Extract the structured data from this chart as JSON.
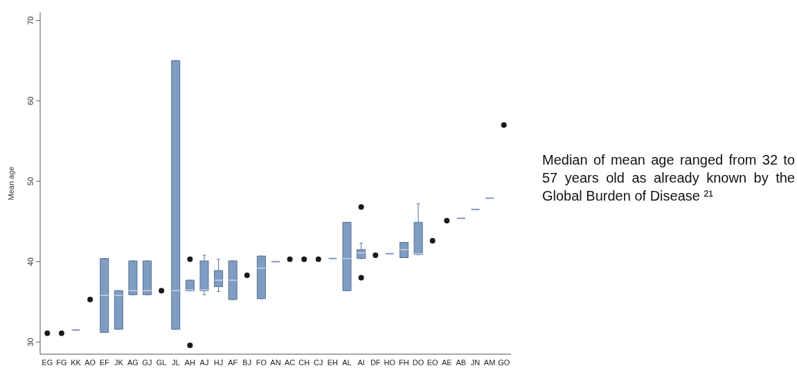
{
  "chart_data": {
    "type": "box",
    "ylabel": "Mean age",
    "ylim": [
      28.5,
      71
    ],
    "yticks": [
      30,
      40,
      50,
      60,
      70
    ],
    "grid": false,
    "marker": "circle",
    "categories": [
      "EG",
      "FG",
      "KK",
      "AO",
      "EF",
      "JK",
      "AG",
      "GJ",
      "GL",
      "JL",
      "AH",
      "AJ",
      "HJ",
      "AF",
      "BJ",
      "FO",
      "AN",
      "AC",
      "CH",
      "CJ",
      "EH",
      "AL",
      "AI",
      "DF",
      "HO",
      "FH",
      "DO",
      "EO",
      "AE",
      "AB",
      "JN",
      "AM",
      "GO"
    ],
    "annotations": [
      "Median of mean age ranged from 32 to 57 years old as already known by the Global Burden of Disease ²¹"
    ],
    "series": [
      {
        "color": "#7f9cc2",
        "boxes": [
          null,
          null,
          {
            "low": 31.5,
            "q1": 31.5,
            "median": 31.5,
            "q3": 31.5,
            "high": 31.5
          },
          null,
          {
            "low": 31.2,
            "q1": 31.2,
            "median": 35.8,
            "q3": 40.4,
            "high": 40.4
          },
          {
            "low": 31.6,
            "q1": 31.6,
            "median": 35.8,
            "q3": 36.4,
            "high": 36.4
          },
          {
            "low": 35.9,
            "q1": 35.9,
            "median": 36.4,
            "q3": 40.1,
            "high": 40.1
          },
          {
            "low": 35.9,
            "q1": 35.9,
            "median": 36.4,
            "q3": 40.1,
            "high": 40.1
          },
          null,
          {
            "low": 31.6,
            "q1": 31.6,
            "median": 36.4,
            "q3": 65,
            "high": 65
          },
          {
            "low": 36.4,
            "q1": 36.4,
            "median": 36.5,
            "q3": 37.7,
            "high": 37.7,
            "outliers": [
              40.3,
              29.6
            ]
          },
          {
            "low": 35.9,
            "q1": 36.4,
            "median": 36.5,
            "q3": 40.1,
            "high": 40.8
          },
          {
            "low": 36.3,
            "q1": 36.9,
            "median": 37.7,
            "q3": 38.9,
            "high": 40.3
          },
          {
            "low": 35.3,
            "q1": 35.3,
            "median": 37.7,
            "q3": 40.1,
            "high": 40.1
          },
          null,
          {
            "low": 35.4,
            "q1": 35.4,
            "median": 39.2,
            "q3": 40.7,
            "high": 40.7
          },
          {
            "low": 40,
            "q1": 40,
            "median": 40,
            "q3": 40,
            "high": 40
          },
          null,
          null,
          null,
          {
            "low": 40.4,
            "q1": 40.4,
            "median": 40.4,
            "q3": 40.4,
            "high": 40.4
          },
          {
            "low": 36.4,
            "q1": 36.4,
            "median": 40.4,
            "q3": 44.9,
            "high": 44.9
          },
          {
            "low": 40.4,
            "q1": 40.4,
            "median": 41.1,
            "q3": 41.5,
            "high": 42.3,
            "outliers": [
              46.8,
              38
            ]
          },
          null,
          {
            "low": 41,
            "q1": 41,
            "median": 41,
            "q3": 41,
            "high": 41
          },
          {
            "low": 40.5,
            "q1": 40.5,
            "median": 41.5,
            "q3": 42.4,
            "high": 42.4
          },
          {
            "low": 40.9,
            "q1": 40.9,
            "median": 41,
            "q3": 44.9,
            "high": 47.2
          },
          null,
          null,
          {
            "low": 45.4,
            "q1": 45.4,
            "median": 45.4,
            "q3": 45.4,
            "high": 45.4
          },
          {
            "low": 46.5,
            "q1": 46.5,
            "median": 46.5,
            "q3": 46.5,
            "high": 46.5
          },
          {
            "low": 47.9,
            "q1": 47.9,
            "median": 47.9,
            "q3": 47.9,
            "high": 47.9
          },
          null
        ]
      },
      {
        "type": "scatter",
        "color": "#1a1a1a",
        "x": [
          "EG",
          "FG",
          "AO",
          "GL",
          "BJ",
          "AC",
          "CH",
          "CJ",
          "DF",
          "EO",
          "AE",
          "GO"
        ],
        "values": [
          31.1,
          31.1,
          35.3,
          36.4,
          38.3,
          40.3,
          40.3,
          40.3,
          40.8,
          42.6,
          45.1,
          57
        ]
      }
    ]
  }
}
